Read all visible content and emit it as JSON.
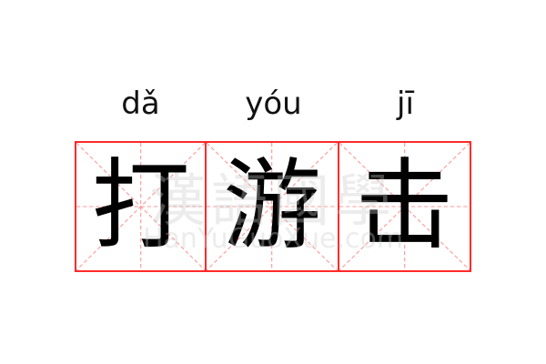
{
  "entries": [
    {
      "pinyin": "dǎ",
      "char": "打"
    },
    {
      "pinyin": "yóu",
      "char": "游"
    },
    {
      "pinyin": "jī",
      "char": "击"
    }
  ],
  "watermark": {
    "title": "漢語國學",
    "url": "HanYuGuoXue.com"
  },
  "colors": {
    "border": "#ff2a2a",
    "guide": "#ff9a9a",
    "text": "#000000"
  }
}
